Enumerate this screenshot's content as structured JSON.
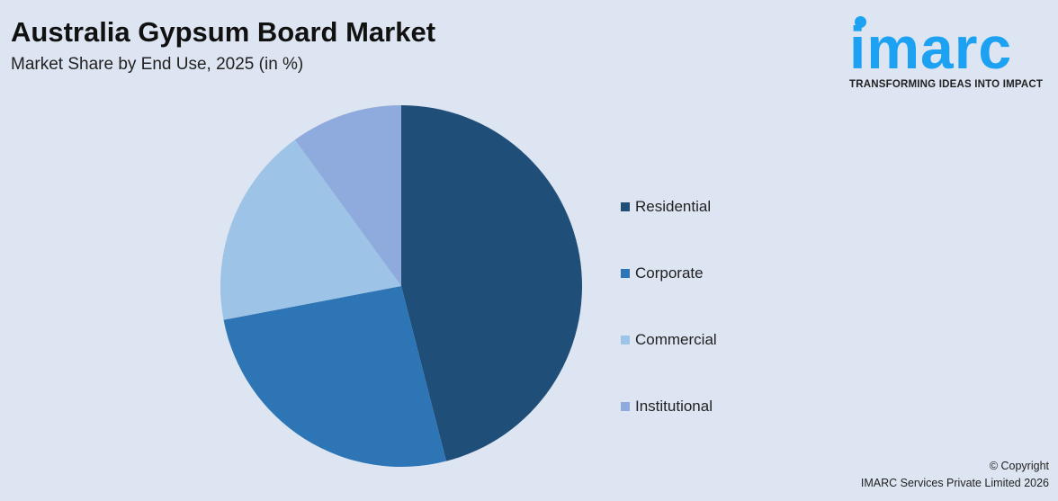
{
  "header": {
    "title": "Australia Gypsum Board Market",
    "subtitle": "Market Share by End Use, 2025 (in %)"
  },
  "logo": {
    "word": "imarc",
    "tagline": "TRANSFORMING IDEAS INTO IMPACT",
    "color": "#1da1f2"
  },
  "chart_data": {
    "type": "pie",
    "title": "Australia Gypsum Board Market",
    "subtitle": "Market Share by End Use, 2025 (in %)",
    "categories": [
      "Residential",
      "Corporate",
      "Commercial",
      "Institutional"
    ],
    "values": [
      46,
      26,
      18,
      10
    ],
    "colors": [
      "#1f4e79",
      "#2e75b6",
      "#9dc3e6",
      "#8faadc"
    ],
    "legend": "right",
    "start": "top, clockwise"
  },
  "footer": {
    "copyright": "© Copyright",
    "company": "IMARC Services Private Limited 2026"
  }
}
